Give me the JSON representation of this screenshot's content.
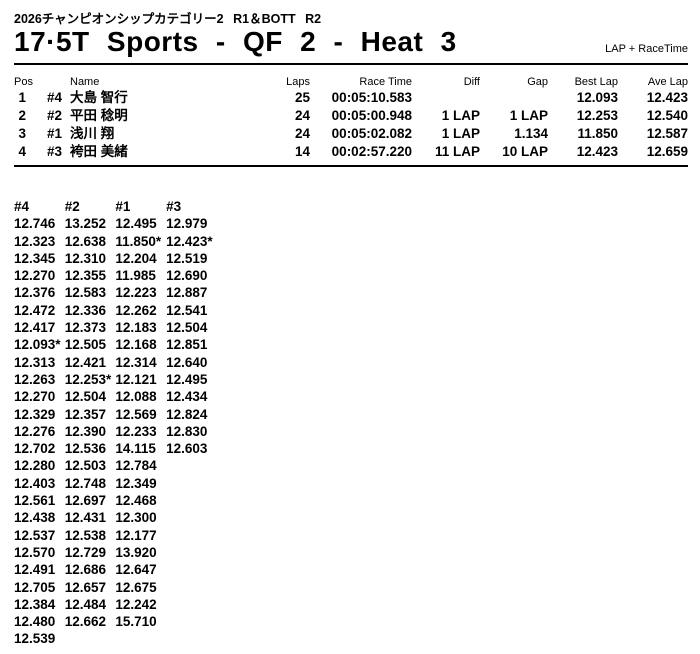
{
  "header": {
    "event_line": "2026チャンピオンシップカテゴリー2 R1＆BOTT R2",
    "title": "17·5T Sports - QF 2 - Heat 3",
    "mode_label": "LAP + RaceTime"
  },
  "results": {
    "columns": {
      "pos": "Pos",
      "name": "Name",
      "laps": "Laps",
      "race_time": "Race Time",
      "diff": "Diff",
      "gap": "Gap",
      "best_lap": "Best Lap",
      "ave_lap": "Ave Lap"
    },
    "rows": [
      {
        "pos": "1",
        "car": "#4",
        "name": "大島 智行",
        "laps": "25",
        "race_time": "00:05:10.583",
        "diff": "",
        "gap": "",
        "best_lap": "12.093",
        "ave_lap": "12.423"
      },
      {
        "pos": "2",
        "car": "#2",
        "name": "平田 稔明",
        "laps": "24",
        "race_time": "00:05:00.948",
        "diff": "1 LAP",
        "gap": "1 LAP",
        "best_lap": "12.253",
        "ave_lap": "12.540"
      },
      {
        "pos": "3",
        "car": "#1",
        "name": "浅川 翔",
        "laps": "24",
        "race_time": "00:05:02.082",
        "diff": "1 LAP",
        "gap": "1.134",
        "best_lap": "11.850",
        "ave_lap": "12.587"
      },
      {
        "pos": "4",
        "car": "#3",
        "name": "袴田 美緒",
        "laps": "14",
        "race_time": "00:02:57.220",
        "diff": "11 LAP",
        "gap": "10 LAP",
        "best_lap": "12.423",
        "ave_lap": "12.659"
      }
    ]
  },
  "lap_times": {
    "columns": [
      "#4",
      "#2",
      "#1",
      "#3"
    ],
    "rows": [
      [
        "12.746",
        "13.252",
        "12.495",
        "12.979"
      ],
      [
        "12.323",
        "12.638",
        "11.850*",
        "12.423*"
      ],
      [
        "12.345",
        "12.310",
        "12.204",
        "12.519"
      ],
      [
        "12.270",
        "12.355",
        "11.985",
        "12.690"
      ],
      [
        "12.376",
        "12.583",
        "12.223",
        "12.887"
      ],
      [
        "12.472",
        "12.336",
        "12.262",
        "12.541"
      ],
      [
        "12.417",
        "12.373",
        "12.183",
        "12.504"
      ],
      [
        "12.093*",
        "12.505",
        "12.168",
        "12.851"
      ],
      [
        "12.313",
        "12.421",
        "12.314",
        "12.640"
      ],
      [
        "12.263",
        "12.253*",
        "12.121",
        "12.495"
      ],
      [
        "12.270",
        "12.504",
        "12.088",
        "12.434"
      ],
      [
        "12.329",
        "12.357",
        "12.569",
        "12.824"
      ],
      [
        "12.276",
        "12.390",
        "12.233",
        "12.830"
      ],
      [
        "12.702",
        "12.536",
        "14.115",
        "12.603"
      ],
      [
        "12.280",
        "12.503",
        "12.784",
        ""
      ],
      [
        "12.403",
        "12.748",
        "12.349",
        ""
      ],
      [
        "12.561",
        "12.697",
        "12.468",
        ""
      ],
      [
        "12.438",
        "12.431",
        "12.300",
        ""
      ],
      [
        "12.537",
        "12.538",
        "12.177",
        ""
      ],
      [
        "12.570",
        "12.729",
        "13.920",
        ""
      ],
      [
        "12.491",
        "12.686",
        "12.647",
        ""
      ],
      [
        "12.705",
        "12.657",
        "12.675",
        ""
      ],
      [
        "12.384",
        "12.484",
        "12.242",
        ""
      ],
      [
        "12.480",
        "12.662",
        "15.710",
        ""
      ],
      [
        "12.539",
        "",
        "",
        ""
      ]
    ]
  }
}
